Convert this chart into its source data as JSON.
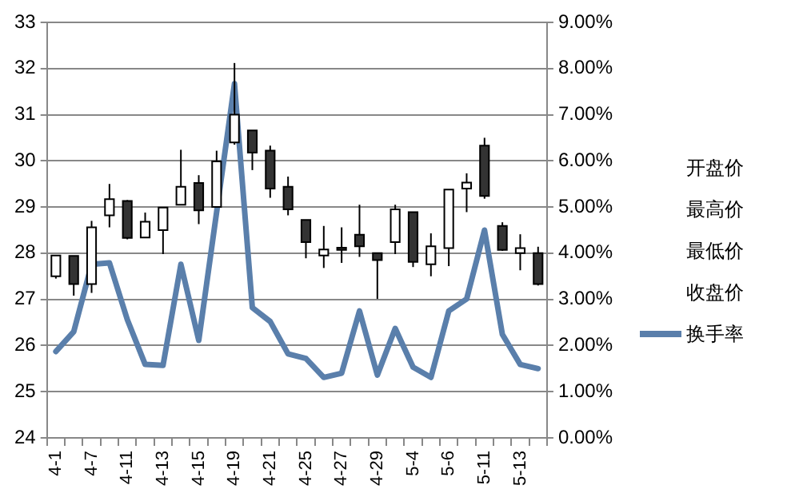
{
  "chart_data": {
    "type": "candlestick",
    "categories": [
      "4-1",
      null,
      "4-7",
      null,
      "4-11",
      null,
      "4-13",
      null,
      "4-15",
      null,
      "4-19",
      null,
      "4-21",
      null,
      "4-25",
      null,
      "4-27",
      null,
      "4-29",
      null,
      "5-4",
      null,
      "5-6",
      null,
      "5-11",
      null,
      "5-13",
      null
    ],
    "ylim": [
      24,
      33
    ],
    "yticks": [
      24,
      25,
      26,
      27,
      28,
      29,
      30,
      31,
      32,
      33
    ],
    "y2lim": [
      0,
      9
    ],
    "y2ticks": [
      {
        "value": 0,
        "label": "0.00%"
      },
      {
        "value": 1,
        "label": "1.00%"
      },
      {
        "value": 2,
        "label": "2.00%"
      },
      {
        "value": 3,
        "label": "3.00%"
      },
      {
        "value": 4,
        "label": "4.00%"
      },
      {
        "value": 5,
        "label": "5.00%"
      },
      {
        "value": 6,
        "label": "6.00%"
      },
      {
        "value": 7,
        "label": "7.00%"
      },
      {
        "value": 8,
        "label": "8.00%"
      },
      {
        "value": 9,
        "label": "9.00%"
      }
    ],
    "grid": "y",
    "legend": "right",
    "line_style": "solid",
    "annotations": [
      "开盘价",
      "最高价",
      "最低价",
      "收盘价"
    ],
    "series": [
      {
        "type": "candlestick",
        "ohlc": [
          [
            27.5,
            27.95,
            27.45,
            27.95
          ],
          [
            27.94,
            27.94,
            27.08,
            27.33
          ],
          [
            27.33,
            28.7,
            27.14,
            28.56
          ],
          [
            28.82,
            29.5,
            28.56,
            29.17
          ],
          [
            29.13,
            29.15,
            28.3,
            28.33
          ],
          [
            28.34,
            28.88,
            28.33,
            28.68
          ],
          [
            28.5,
            29.0,
            27.98,
            28.99
          ],
          [
            29.05,
            30.24,
            29.05,
            29.44
          ],
          [
            29.52,
            29.69,
            28.63,
            28.93
          ],
          [
            29.0,
            30.22,
            29.0,
            29.99
          ],
          [
            30.4,
            32.12,
            30.35,
            31.0
          ],
          [
            30.66,
            30.66,
            29.8,
            30.18
          ],
          [
            30.22,
            30.33,
            29.2,
            29.4
          ],
          [
            29.44,
            29.66,
            28.82,
            28.95
          ],
          [
            28.72,
            28.72,
            27.89,
            28.24
          ],
          [
            27.95,
            28.59,
            27.68,
            28.08
          ],
          [
            28.12,
            28.56,
            27.79,
            28.07
          ],
          [
            28.4,
            29.05,
            27.92,
            28.15
          ],
          [
            28.0,
            28.0,
            27.01,
            27.85
          ],
          [
            28.24,
            29.05,
            27.98,
            28.95
          ],
          [
            28.89,
            28.89,
            27.7,
            27.81
          ],
          [
            27.76,
            28.43,
            27.5,
            28.15
          ],
          [
            28.11,
            29.38,
            27.72,
            29.38
          ],
          [
            29.4,
            29.73,
            28.89,
            29.53
          ],
          [
            30.33,
            30.5,
            29.18,
            29.24
          ],
          [
            28.59,
            28.67,
            28.05,
            28.07
          ],
          [
            28.0,
            28.41,
            27.63,
            28.11
          ],
          [
            28.0,
            28.14,
            27.3,
            27.33
          ]
        ]
      },
      {
        "name": "换手率",
        "type": "line",
        "axis": "y2",
        "color": "#5a7fab",
        "values": [
          1.87,
          2.3,
          3.76,
          3.79,
          2.56,
          1.59,
          1.57,
          3.76,
          2.11,
          4.89,
          7.67,
          2.82,
          2.52,
          1.82,
          1.72,
          1.31,
          1.4,
          2.75,
          1.36,
          2.37,
          1.53,
          1.31,
          2.75,
          3.01,
          4.5,
          2.24,
          1.59,
          1.5
        ]
      }
    ]
  }
}
